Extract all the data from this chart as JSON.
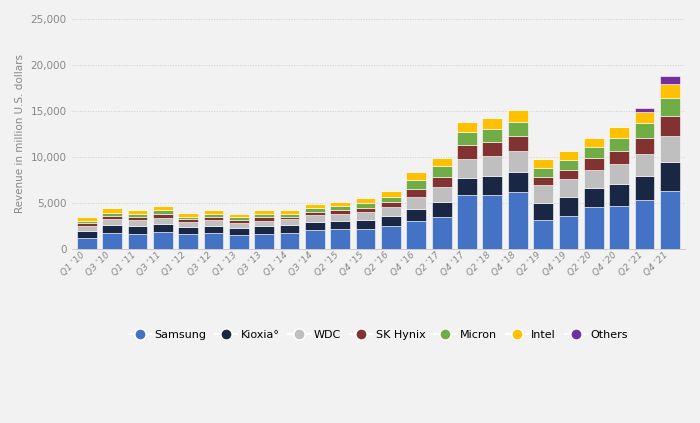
{
  "quarters": [
    "Q1 '10",
    "Q3 '10",
    "Q1 '11",
    "Q3 '11",
    "Q1 '12",
    "Q3 '12",
    "Q1 '13",
    "Q3 '13",
    "Q1 '14",
    "Q3 '14",
    "Q2 '15",
    "Q4 '15",
    "Q2 '16",
    "Q4 '16",
    "Q2 '17",
    "Q4 '17",
    "Q2 '18",
    "Q4 '18",
    "Q2 '19",
    "Q4 '19",
    "Q2 '20",
    "Q4 '20",
    "Q2 '21",
    "Q4 '21"
  ],
  "Samsung": [
    1200,
    1700,
    1650,
    1800,
    1600,
    1700,
    1550,
    1650,
    1700,
    2000,
    2100,
    2200,
    2500,
    3000,
    3500,
    5800,
    5900,
    6200,
    3100,
    3600,
    4500,
    4700,
    5300,
    6300
  ],
  "Kioxia": [
    750,
    850,
    800,
    900,
    750,
    800,
    750,
    800,
    850,
    950,
    950,
    950,
    1050,
    1350,
    1600,
    1900,
    2000,
    2100,
    1900,
    2000,
    2100,
    2300,
    2600,
    3100
  ],
  "WDC": [
    550,
    650,
    650,
    700,
    550,
    600,
    550,
    600,
    650,
    700,
    750,
    850,
    950,
    1300,
    1600,
    2100,
    2200,
    2300,
    1900,
    1950,
    2000,
    2200,
    2400,
    2900
  ],
  "SK_Hynix": [
    300,
    380,
    380,
    420,
    300,
    350,
    300,
    370,
    300,
    380,
    400,
    480,
    580,
    900,
    1150,
    1500,
    1550,
    1700,
    950,
    1050,
    1250,
    1450,
    1700,
    2100
  ],
  "Micron": [
    250,
    350,
    330,
    370,
    300,
    330,
    280,
    330,
    300,
    370,
    400,
    450,
    550,
    900,
    1100,
    1350,
    1400,
    1500,
    950,
    1050,
    1200,
    1450,
    1700,
    2050
  ],
  "Intel": [
    450,
    500,
    450,
    500,
    400,
    430,
    400,
    430,
    420,
    470,
    500,
    550,
    650,
    850,
    950,
    1150,
    1200,
    1350,
    950,
    960,
    1050,
    1150,
    1200,
    1450
  ],
  "Others": [
    0,
    0,
    0,
    0,
    0,
    0,
    0,
    0,
    0,
    0,
    0,
    0,
    0,
    0,
    0,
    0,
    0,
    0,
    0,
    0,
    0,
    0,
    450,
    850
  ],
  "colors": {
    "Samsung": "#4472c4",
    "Kioxia": "#1a2744",
    "WDC": "#bfbfbf",
    "SK_Hynix": "#833232",
    "Micron": "#70ad47",
    "Intel": "#ffc000",
    "Others": "#7030a0"
  },
  "labels": {
    "Samsung": "Samsung",
    "Kioxia": "Kioxia°",
    "WDC": "WDC",
    "SK_Hynix": "SK Hynix",
    "Micron": "Micron",
    "Intel": "Intel",
    "Others": "Others"
  },
  "ylabel": "Revenue in million U.S. dollars",
  "ylim": [
    0,
    25000
  ],
  "yticks": [
    0,
    5000,
    10000,
    15000,
    20000,
    25000
  ],
  "background_color": "#f2f2f2",
  "plot_bg_color": "#f2f2f2"
}
